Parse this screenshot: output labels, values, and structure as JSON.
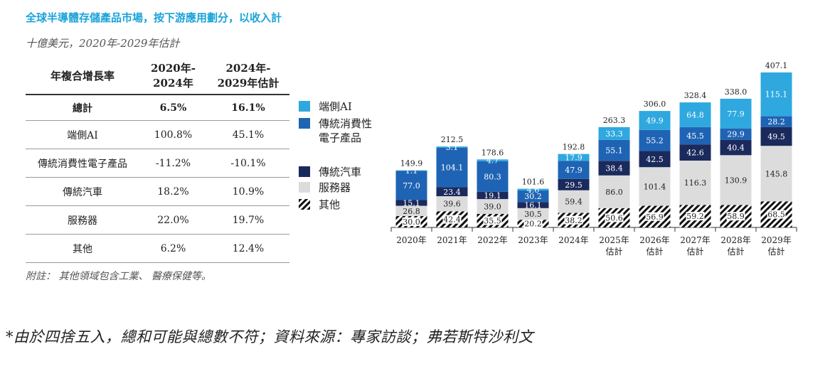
{
  "title": "全球半導體存儲產品市場，按下游應用劃分，以收入計",
  "subtitle": "十億美元，2020年-2029年估計",
  "table": {
    "header": {
      "label": "年複合增長率",
      "col1_line1": "2020年-",
      "col1_line2": "2024年",
      "col2_line1": "2024年-",
      "col2_line2": "2029年估計"
    },
    "rows": [
      {
        "name": "總計",
        "c1": "6.5%",
        "c2": "16.1%"
      },
      {
        "name": "端側AI",
        "c1": "100.8%",
        "c2": "45.1%"
      },
      {
        "name": "傳統消費性電子產品",
        "c1": "-11.2%",
        "c2": "-10.1%"
      },
      {
        "name": "傳統汽車",
        "c1": "18.2%",
        "c2": "10.9%"
      },
      {
        "name": "服務器",
        "c1": "22.0%",
        "c2": "19.7%"
      },
      {
        "name": "其他",
        "c1": "6.2%",
        "c2": "12.4%"
      }
    ]
  },
  "note": "附註： 其他領域包含工業、 醫療保健等。",
  "footnote": "*由於四捨五入，總和可能與總數不符；資料來源：專家訪談；弗若斯特沙利文",
  "colors": {
    "edge_ai": "#2ea8df",
    "consumer": "#1f64b4",
    "auto": "#1b2a5c",
    "server": "#dcdcdc",
    "other_a": "#111111",
    "other_b": "#ffffff"
  },
  "chart_data": {
    "type": "bar",
    "stacked": true,
    "categories": [
      [
        "2020年"
      ],
      [
        "2021年"
      ],
      [
        "2022年"
      ],
      [
        "2023年"
      ],
      [
        "2024年"
      ],
      [
        "2025年",
        "估計"
      ],
      [
        "2026年",
        "估計"
      ],
      [
        "2027年",
        "估計"
      ],
      [
        "2028年",
        "估計"
      ],
      [
        "2029年",
        "估計"
      ]
    ],
    "series": [
      {
        "name": "其他",
        "key": "other",
        "values": [
          30.0,
          42.4,
          35.5,
          20.2,
          38.2,
          50.6,
          56.9,
          59.2,
          58.9,
          68.5
        ]
      },
      {
        "name": "服務器",
        "key": "server",
        "values": [
          26.8,
          39.6,
          39.0,
          30.5,
          59.4,
          86.0,
          101.4,
          116.3,
          130.9,
          145.8
        ]
      },
      {
        "name": "傳統汽車",
        "key": "auto",
        "values": [
          15.1,
          23.4,
          19.1,
          16.1,
          29.5,
          38.4,
          42.5,
          42.6,
          40.4,
          49.5
        ]
      },
      {
        "name": "傳統消費性電子產品",
        "key": "consumer",
        "values": [
          77.0,
          104.1,
          80.3,
          30.2,
          47.9,
          55.1,
          55.2,
          45.5,
          29.9,
          28.2
        ]
      },
      {
        "name": "端側AI",
        "key": "edge_ai",
        "values": [
          1.1,
          3.1,
          4.7,
          4.6,
          17.9,
          33.3,
          49.9,
          64.8,
          77.9,
          115.1
        ]
      }
    ],
    "totals": [
      149.9,
      212.5,
      178.6,
      101.6,
      192.8,
      263.3,
      306.0,
      328.4,
      338.0,
      407.1
    ],
    "legend": [
      {
        "key": "edge_ai",
        "lines": [
          "端側AI"
        ]
      },
      {
        "key": "consumer",
        "lines": [
          "傳統消費性",
          "電子產品"
        ]
      },
      {
        "key": "auto",
        "lines": [
          "傳統汽車"
        ]
      },
      {
        "key": "server",
        "lines": [
          "服務器"
        ]
      },
      {
        "key": "other",
        "lines": [
          "其他"
        ]
      }
    ],
    "ylim": [
      0,
      420
    ],
    "legend_position": "left"
  }
}
